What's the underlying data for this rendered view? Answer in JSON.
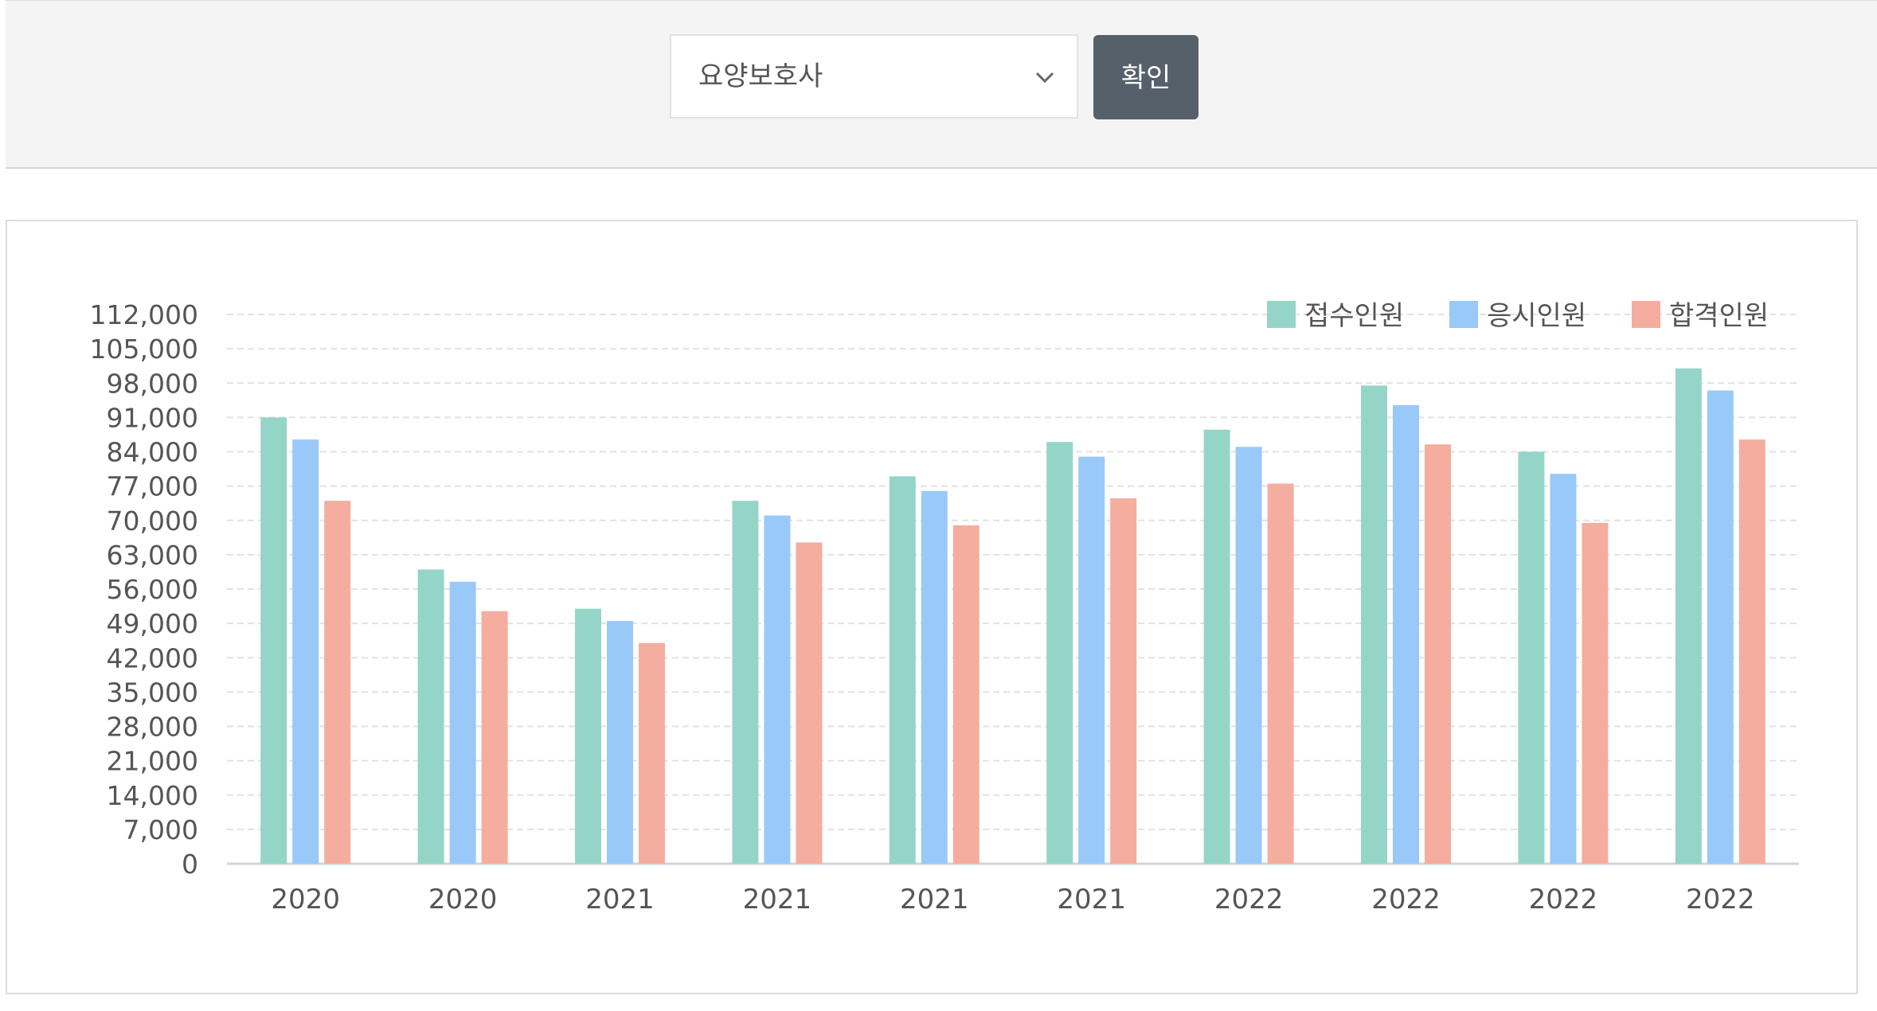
{
  "filter": {
    "selected_value": "요양보호사",
    "confirm_label": "확인"
  },
  "colors": {
    "series1": "#95d5c8",
    "series2": "#99c9f9",
    "series3": "#f5ad9f",
    "grid": "#e2e2e2",
    "axis": "#cfd4dc",
    "text": "#555555"
  },
  "chart_data": {
    "type": "bar",
    "categories": [
      "2020",
      "2020",
      "2021",
      "2021",
      "2021",
      "2021",
      "2022",
      "2022",
      "2022",
      "2022"
    ],
    "series": [
      {
        "name": "접수인원",
        "values": [
          91000,
          60000,
          52000,
          74000,
          79000,
          86000,
          88500,
          97500,
          84000,
          101000
        ]
      },
      {
        "name": "응시인원",
        "values": [
          86500,
          57500,
          49500,
          71000,
          76000,
          83000,
          85000,
          93500,
          79500,
          96500
        ]
      },
      {
        "name": "합격인원",
        "values": [
          74000,
          51500,
          45000,
          65500,
          69000,
          74500,
          77500,
          85500,
          69500,
          86500
        ]
      }
    ],
    "y_ticks": [
      "0",
      "7,000",
      "14,000",
      "21,000",
      "28,000",
      "35,000",
      "42,000",
      "49,000",
      "56,000",
      "63,000",
      "70,000",
      "77,000",
      "84,000",
      "91,000",
      "98,000",
      "105,000",
      "112,000"
    ],
    "ylim": [
      0,
      112000
    ],
    "grid": true,
    "legend_position": "top-right",
    "title": "",
    "xlabel": "",
    "ylabel": ""
  }
}
